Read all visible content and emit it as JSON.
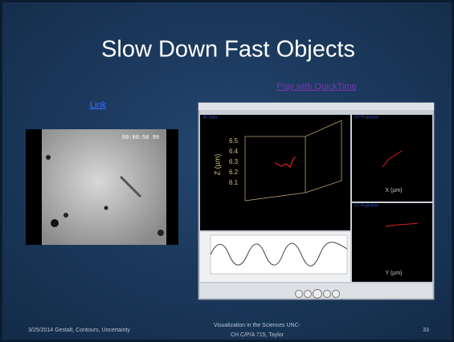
{
  "slide": {
    "title": "Slow Down Fast Objects",
    "links": [
      "Link",
      "Play with QuickTime"
    ],
    "video_frame": {
      "timestamp": "00:00:56 99"
    },
    "app_window": {
      "panels": [
        "3D Data",
        "XY Projection",
        "YZ Projection"
      ],
      "z_axis_label": "Z (µm)",
      "z_ticks": [
        "6.5",
        "6.4",
        "6.3",
        "6.2",
        "6.1"
      ],
      "x_axis_label": "X (µm)",
      "y_axis_label": "Y (µm)"
    },
    "footer": {
      "date_topic": "3/25/2014 Gestalt, Contours, Uncertainty",
      "course": [
        "Visualization in the Sciences UNC-",
        "CH C/P/A 715, Taylor"
      ],
      "page": "33"
    }
  }
}
